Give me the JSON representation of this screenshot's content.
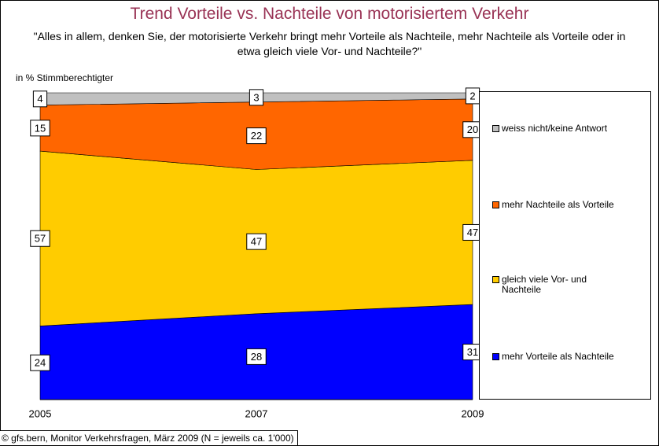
{
  "chart_data": {
    "type": "stacked_area",
    "title": "Trend Vorteile vs. Nachteile von motorisiertem Verkehr",
    "subtitle": "\"Alles in allem, denken Sie, der motorisierte Verkehr bringt mehr Vorteile als Nachteile, mehr Nachteile als Vorteile oder in etwa gleich viele Vor- und Nachteile?\"",
    "y_label": "in % Stimmberechtigter",
    "source": "© gfs.bern, Monitor Verkehrsfragen, März 2009 (N = jeweils ca. 1'000)",
    "categories": [
      "2005",
      "2007",
      "2009"
    ],
    "ylim": [
      0,
      100
    ],
    "series": [
      {
        "name": "mehr Vorteile als Nachteile",
        "color": "#0000ff",
        "values": [
          24,
          28,
          31
        ]
      },
      {
        "name": "gleich viele Vor- und Nachteile",
        "color": "#ffcc00",
        "values": [
          57,
          47,
          47
        ]
      },
      {
        "name": "mehr Nachteile als Vorteile",
        "color": "#ff6600",
        "values": [
          15,
          22,
          20
        ]
      },
      {
        "name": "weiss nicht/keine Antwort",
        "color": "#c0c0c0",
        "values": [
          4,
          3,
          2
        ]
      }
    ]
  }
}
